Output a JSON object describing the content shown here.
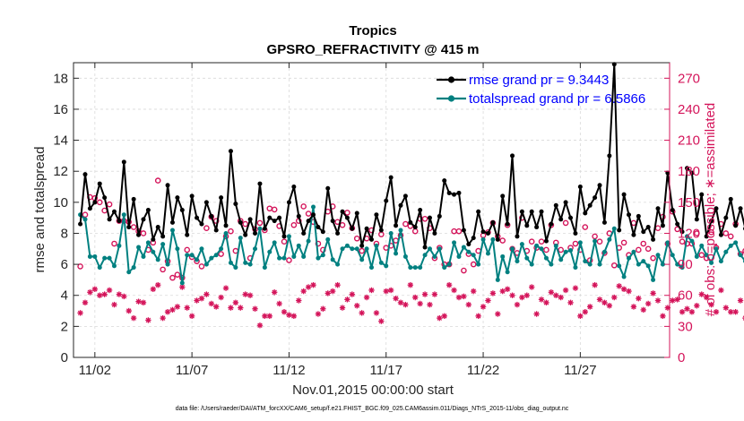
{
  "chart_data": {
    "type": "line",
    "title": "Tropics",
    "subtitle": "GPSRO_REFRACTIVITY @ 415 m",
    "xlabel": "Nov.01,2015 00:00:00 start",
    "ylabel": "rmse and totalspread",
    "y2label": "# of obs: o=possible; ∗=assimilated",
    "footnote": "data file: /Users/raeder/DAI/ATM_forcXX/CAM6_setup/f.e21.FHIST_BGC.f09_025.CAM6assim.011/Diags_NTrS_2015-11/obs_diag_output.nc",
    "xlim": [
      0.4,
      31.1
    ],
    "ylim": [
      0,
      19
    ],
    "y2lim": [
      0,
      285
    ],
    "xticks": [
      1.5,
      6.5,
      11.5,
      16.5,
      21.5,
      26.5
    ],
    "xtick_labels": [
      "11/02",
      "11/07",
      "11/12",
      "11/17",
      "11/22",
      "11/27"
    ],
    "yticks": [
      0,
      2,
      4,
      6,
      8,
      10,
      12,
      14,
      16,
      18
    ],
    "y2ticks": [
      0,
      30,
      60,
      90,
      120,
      150,
      180,
      210,
      240,
      270
    ],
    "grid": true,
    "legend_position": "top-right",
    "series": [
      {
        "name": "rmse grand pr = 9.3443",
        "color": "#000000",
        "axis": "left",
        "values": [
          8.6,
          11.8,
          9.6,
          10.0,
          11.2,
          10.3,
          8.9,
          9.4,
          8.8,
          12.6,
          8.4,
          10.2,
          7.9,
          8.9,
          9.5,
          7.6,
          8.4,
          7.8,
          11.1,
          8.7,
          10.3,
          9.5,
          7.9,
          10.4,
          9.0,
          8.6,
          10.0,
          9.1,
          8.2,
          10.3,
          8.5,
          13.3,
          9.9,
          8.7,
          7.9,
          8.9,
          8.0,
          11.2,
          8.3,
          9.0,
          8.8,
          9.0,
          7.8,
          10.0,
          11.0,
          9.1,
          8.0,
          8.8,
          9.2,
          8.4,
          8.1,
          10.9,
          8.8,
          8.0,
          9.4,
          9.0,
          8.3,
          9.3,
          7.2,
          8.3,
          7.6,
          9.2,
          8.2,
          10.1,
          11.6,
          8.5,
          9.8,
          10.4,
          8.7,
          8.4,
          9.5,
          7.1,
          9.0,
          8.0,
          9.1,
          11.4,
          10.6,
          10.5,
          10.6,
          8.2,
          7.3,
          7.7,
          9.4,
          8.1,
          8.0,
          8.7,
          7.6,
          10.4,
          8.6,
          13.0,
          7.8,
          9.4,
          8.5,
          9.4,
          8.4,
          9.4,
          7.5,
          8.6,
          9.8,
          8.9,
          10.0,
          9.0,
          8.0,
          11.0,
          9.3,
          9.8,
          10.3,
          11.1,
          8.7,
          13.0,
          18.9,
          8.2,
          10.5,
          9.2,
          7.9,
          9.1,
          8.1,
          8.4,
          7.6,
          9.6,
          8.5,
          11.9,
          9.5,
          8.6,
          8.1,
          12.2,
          11.9,
          8.9,
          10.5,
          7.8,
          8.8,
          9.6,
          7.9,
          9.0,
          10.2,
          8.5,
          9.6,
          8.3,
          9.0,
          7.8,
          8.5,
          8.1,
          9.6,
          9.6,
          8.5,
          10.0,
          8.3,
          10.2,
          8.3,
          10.2,
          9.7,
          8.4,
          7.5,
          9.1,
          8.0,
          9.2,
          8.8,
          8.2,
          9.4,
          8.0,
          8.2,
          8.5,
          8.6,
          10.2,
          8.8,
          10.0,
          10.7,
          8.2
        ]
      },
      {
        "name": "totalspread grand pr = 6.5866",
        "color": "#008080",
        "axis": "left",
        "values": [
          9.2,
          8.9,
          6.5,
          6.5,
          5.8,
          6.4,
          6.4,
          5.9,
          7.2,
          9.2,
          5.5,
          5.8,
          7.1,
          6.5,
          7.4,
          6.8,
          6.3,
          7.3,
          6.0,
          8.2,
          7.0,
          4.8,
          6.6,
          6.6,
          6.3,
          7.0,
          6.0,
          6.4,
          6.6,
          7.0,
          8.0,
          6.1,
          5.8,
          7.7,
          6.1,
          6.0,
          7.0,
          8.3,
          5.8,
          6.8,
          7.4,
          6.4,
          6.4,
          7.8,
          6.5,
          7.2,
          6.5,
          7.5,
          9.7,
          6.4,
          6.6,
          7.6,
          6.3,
          6.0,
          7.0,
          7.2,
          7.0,
          7.0,
          6.3,
          7.0,
          5.8,
          7.2,
          6.1,
          5.9,
          8.0,
          6.7,
          8.2,
          6.5,
          5.8,
          5.8,
          5.8,
          6.6,
          7.0,
          6.5,
          7.0,
          5.8,
          6.0,
          7.4,
          6.5,
          7.1,
          6.8,
          6.6,
          6.0,
          7.6,
          6.7,
          7.6,
          5.0,
          6.5,
          5.5,
          7.0,
          6.2,
          7.3,
          6.4,
          6.0,
          7.2,
          7.0,
          6.4,
          6.0,
          7.2,
          6.3,
          6.8,
          6.9,
          5.8,
          7.4,
          6.2,
          6.0,
          7.5,
          6.0,
          6.8,
          7.6,
          8.3,
          5.9,
          5.2,
          6.4,
          6.8,
          6.0,
          6.2,
          5.9,
          5.0,
          6.6,
          6.0,
          7.4,
          6.6,
          6.0,
          5.8,
          7.8,
          7.5,
          6.5,
          7.2,
          6.6,
          6.1,
          7.0,
          6.2,
          6.8,
          7.2,
          7.4,
          6.6,
          6.2,
          6.8,
          6.2,
          5.5,
          6.6,
          7.2,
          7.4,
          6.8,
          7.8,
          6.4,
          7.9,
          6.6,
          6.5,
          7.2,
          6.0,
          6.4,
          5.2,
          7.4,
          6.8,
          6.0,
          6.0,
          6.7,
          6.2,
          6.0,
          6.4,
          6.4,
          7.8,
          6.3,
          7.6,
          7.2,
          5.6
        ]
      },
      {
        "name": "possible obs",
        "color": "#d4145a",
        "axis": "right",
        "marker": "circle",
        "values": [
          88,
          138,
          155,
          154,
          150,
          142,
          148,
          110,
          132,
          132,
          131,
          126,
          122,
          120,
          104,
          111,
          171,
          85,
          93,
          77,
          80,
          77,
          104,
          97,
          93,
          88,
          125,
          136,
          132,
          100,
          117,
          122,
          103,
          132,
          129,
          96,
          124,
          130,
          123,
          144,
          143,
          127,
          112,
          94,
          128,
          132,
          146,
          139,
          131,
          110,
          104,
          141,
          146,
          131,
          128,
          140,
          125,
          115,
          103,
          115,
          123,
          110,
          119,
          106,
          108,
          113,
          118,
          129,
          127,
          122,
          134,
          134,
          125,
          96,
          106,
          90,
          90,
          122,
          122,
          84,
          100,
          90,
          103,
          118,
          121,
          130,
          117,
          113,
          128,
          105,
          101,
          135,
          103,
          112,
          106,
          112,
          104,
          128,
          111,
          104,
          130,
          106,
          110,
          104,
          126,
          94,
          117,
          112,
          101,
          120,
          89,
          106,
          111,
          99,
          130,
          104,
          110,
          105,
          96,
          125,
          136,
          110,
          141,
          124,
          112,
          110,
          110,
          120,
          99,
          96,
          121,
          106,
          129,
          120,
          117,
          129,
          100,
          103,
          98,
          94,
          94,
          103,
          118,
          136,
          119,
          115,
          104,
          130,
          117,
          110,
          95,
          99,
          126,
          90,
          104,
          108,
          103,
          124,
          117,
          110,
          103,
          107,
          123,
          120,
          120,
          192,
          179,
          212,
          170
        ]
      },
      {
        "name": "assimilated obs",
        "color": "#d4145a",
        "axis": "right",
        "marker": "asterisk",
        "values": [
          43,
          53,
          63,
          66,
          60,
          61,
          65,
          51,
          61,
          59,
          45,
          38,
          54,
          53,
          36,
          66,
          70,
          38,
          44,
          46,
          49,
          68,
          48,
          40,
          55,
          57,
          61,
          52,
          49,
          58,
          67,
          48,
          53,
          48,
          61,
          60,
          47,
          31,
          40,
          40,
          63,
          52,
          44,
          41,
          40,
          55,
          64,
          68,
          70,
          42,
          47,
          62,
          64,
          70,
          48,
          56,
          61,
          50,
          43,
          58,
          65,
          43,
          35,
          64,
          65,
          57,
          53,
          51,
          70,
          58,
          52,
          61,
          51,
          61,
          38,
          40,
          70,
          65,
          58,
          59,
          51,
          64,
          40,
          49,
          55,
          62,
          42,
          64,
          66,
          60,
          51,
          58,
          60,
          68,
          42,
          56,
          53,
          63,
          60,
          58,
          65,
          53,
          67,
          40,
          44,
          49,
          70,
          56,
          53,
          50,
          58,
          69,
          66,
          64,
          49,
          57,
          46,
          52,
          62,
          55,
          40,
          48,
          55,
          56,
          44,
          47,
          44,
          50,
          61,
          58,
          51,
          44,
          65,
          48,
          44,
          44,
          55,
          38,
          54,
          53,
          51,
          56,
          62,
          52,
          51,
          48,
          52,
          60,
          66,
          50,
          50,
          46,
          65,
          58,
          52,
          60,
          54,
          56,
          52,
          48,
          60,
          62,
          69,
          71,
          64,
          58,
          70,
          72,
          51
        ]
      }
    ]
  }
}
